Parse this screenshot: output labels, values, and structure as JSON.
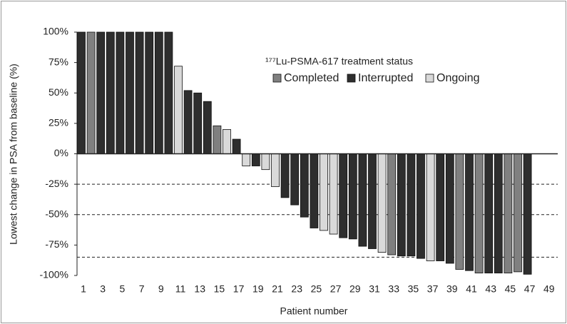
{
  "chart_data": {
    "type": "bar",
    "y_label": "Lowest change in PSA from baseline (%)",
    "x_label": "Patient number",
    "legend_title": "¹⁷⁷Lu-PSMA-617 treatment status",
    "categories": [
      "1",
      null,
      "3",
      null,
      "5",
      null,
      "7",
      null,
      "9",
      null,
      "11",
      null,
      "13",
      null,
      "15",
      null,
      "17",
      null,
      "19",
      null,
      "21",
      null,
      "23",
      null,
      "25",
      null,
      "27",
      null,
      "29",
      null,
      "31",
      null,
      "33",
      null,
      "35",
      null,
      "37",
      null,
      "39",
      null,
      "41",
      null,
      "43",
      null,
      "45",
      null,
      "47",
      null,
      "49"
    ],
    "series": [
      {
        "name": "Completed",
        "color": "#808080",
        "values": [
          null,
          100,
          null,
          null,
          null,
          null,
          null,
          null,
          null,
          null,
          null,
          null,
          null,
          null,
          23,
          null,
          null,
          null,
          null,
          null,
          null,
          null,
          null,
          null,
          null,
          null,
          null,
          null,
          null,
          null,
          null,
          null,
          -83,
          null,
          null,
          null,
          null,
          null,
          null,
          -95,
          null,
          -98,
          null,
          null,
          -98,
          -97,
          null,
          null,
          null
        ]
      },
      {
        "name": "Interrupted",
        "color": "#2e2e2e",
        "values": [
          100,
          null,
          100,
          100,
          100,
          100,
          100,
          100,
          100,
          100,
          null,
          52,
          50,
          43,
          null,
          null,
          12,
          null,
          -10,
          null,
          null,
          -36,
          -42,
          -52,
          -61,
          null,
          null,
          -69,
          -70,
          -76,
          -78,
          null,
          null,
          -84,
          -84,
          -86,
          null,
          -88,
          -90,
          null,
          -96,
          null,
          -98,
          -98,
          null,
          null,
          -99,
          null,
          null
        ]
      },
      {
        "name": "Ongoing",
        "color": "#d9d9d9",
        "values": [
          null,
          null,
          null,
          null,
          null,
          null,
          null,
          null,
          null,
          null,
          72,
          null,
          null,
          null,
          null,
          20,
          null,
          -10,
          null,
          -13,
          -27,
          null,
          null,
          null,
          null,
          -63,
          -66,
          null,
          null,
          null,
          null,
          -81,
          null,
          null,
          null,
          null,
          -88,
          null,
          null,
          null,
          null,
          null,
          null,
          null,
          null,
          null,
          null,
          null,
          null
        ]
      }
    ],
    "ylim": [
      -100,
      100
    ],
    "yticks": [
      {
        "value": 100,
        "label": "100%"
      },
      {
        "value": 75,
        "label": "75%"
      },
      {
        "value": 50,
        "label": "50%"
      },
      {
        "value": 25,
        "label": "25%"
      },
      {
        "value": 0,
        "label": "0%"
      },
      {
        "value": -25,
        "label": "-25%"
      },
      {
        "value": -50,
        "label": "-50%"
      },
      {
        "value": -75,
        "label": "-75%"
      },
      {
        "value": -100,
        "label": "-100%"
      }
    ],
    "reference_lines": [
      -25,
      -50,
      -85
    ]
  }
}
